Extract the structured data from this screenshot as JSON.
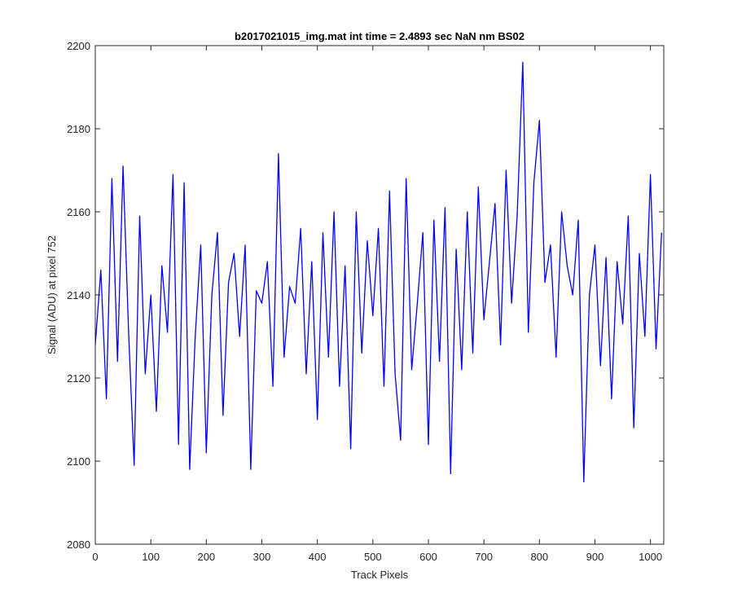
{
  "chart_data": {
    "type": "line",
    "title": "b2017021015_img.mat int time = 2.4893 sec  NaN nm BS02",
    "xlabel": "Track Pixels",
    "ylabel": "Signal (ADU) at pixel 752",
    "xlim": [
      0,
      1024
    ],
    "ylim": [
      2080,
      2200
    ],
    "xticks": [
      0,
      100,
      200,
      300,
      400,
      500,
      600,
      700,
      800,
      900,
      1000
    ],
    "yticks": [
      2080,
      2100,
      2120,
      2140,
      2160,
      2180,
      2200
    ],
    "grid": false,
    "legend": "none",
    "line_color": "#0000ff",
    "series": [
      {
        "x": [
          0,
          10,
          20,
          30,
          40,
          50,
          60,
          70,
          80,
          90,
          100,
          110,
          120,
          130,
          140,
          150,
          160,
          170,
          180,
          190,
          200,
          210,
          220,
          230,
          240,
          250,
          260,
          270,
          280,
          290,
          300,
          310,
          320,
          330,
          340,
          350,
          360,
          370,
          380,
          390,
          400,
          410,
          420,
          430,
          440,
          450,
          460,
          470,
          480,
          490,
          500,
          510,
          520,
          530,
          540,
          550,
          560,
          570,
          580,
          590,
          600,
          610,
          620,
          630,
          640,
          650,
          660,
          670,
          680,
          690,
          700,
          710,
          720,
          730,
          740,
          750,
          760,
          770,
          780,
          790,
          800,
          810,
          820,
          830,
          840,
          850,
          860,
          870,
          880,
          890,
          900,
          910,
          920,
          930,
          940,
          950,
          960,
          970,
          980,
          990,
          1000,
          1010,
          1020
        ],
        "y": [
          2128,
          2146,
          2115,
          2168,
          2124,
          2171,
          2131,
          2099,
          2159,
          2121,
          2140,
          2112,
          2147,
          2131,
          2169,
          2104,
          2167,
          2098,
          2130,
          2152,
          2102,
          2140,
          2155,
          2111,
          2143,
          2150,
          2130,
          2152,
          2098,
          2141,
          2138,
          2148,
          2118,
          2174,
          2125,
          2142,
          2138,
          2156,
          2121,
          2148,
          2110,
          2155,
          2125,
          2160,
          2118,
          2147,
          2103,
          2160,
          2126,
          2153,
          2135,
          2156,
          2118,
          2165,
          2121,
          2105,
          2168,
          2122,
          2138,
          2155,
          2104,
          2158,
          2124,
          2161,
          2097,
          2151,
          2122,
          2160,
          2126,
          2166,
          2134,
          2148,
          2162,
          2128,
          2170,
          2138,
          2159,
          2196,
          2131,
          2167,
          2182,
          2143,
          2152,
          2125,
          2160,
          2147,
          2140,
          2158,
          2095,
          2140,
          2152,
          2123,
          2149,
          2115,
          2148,
          2133,
          2159,
          2108,
          2150,
          2130,
          2169,
          2127,
          2155
        ]
      }
    ]
  }
}
